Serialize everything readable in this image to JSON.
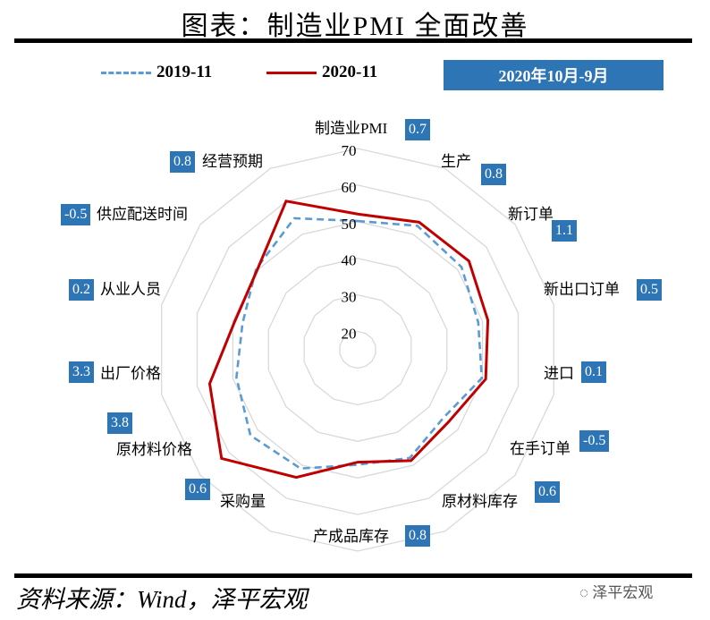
{
  "title": "图表：制造业PMI 全面改善",
  "badge": "2020年10月-9月",
  "source": "资料来源：Wind，泽平宏观",
  "logo": "泽平宏观",
  "colors": {
    "series_2019": "#5B9BD5",
    "series_2020": "#C00000",
    "delta_box": "#2E75B6",
    "grid": "#D9D9D9"
  },
  "chart_data": {
    "type": "radar",
    "title": "",
    "axes": [
      "制造业PMI",
      "生产",
      "新订单",
      "新出口订单",
      "进口",
      "在手订单",
      "原材料库存",
      "产成品库存",
      "采购量",
      "原材料价格",
      "出厂价格",
      "从业人员",
      "供应配送时间",
      "经营预期"
    ],
    "changes": [
      "0.7",
      "0.8",
      "1.1",
      "0.5",
      "0.1",
      "-0.5",
      "0.6",
      "0.8",
      "0.6",
      "3.8",
      "3.3",
      "0.2",
      "-0.5",
      "0.8"
    ],
    "range": [
      15,
      70
    ],
    "ticks": [
      "20",
      "30",
      "40",
      "50",
      "60",
      "70"
    ],
    "grid": true,
    "legend_position": "top",
    "series": [
      {
        "name": "2019-11",
        "style": "dashed",
        "values": [
          50.2,
          52.6,
          51.3,
          48.8,
          49.8,
          44.9,
          47.8,
          46.4,
          51.0,
          52.5,
          49.0,
          47.3,
          50.5,
          54.9
        ]
      },
      {
        "name": "2020-11",
        "style": "solid",
        "values": [
          52.1,
          53.7,
          53.9,
          51.5,
          50.9,
          46.7,
          48.6,
          45.7,
          53.7,
          62.6,
          56.5,
          49.5,
          50.1,
          60.1
        ]
      }
    ]
  }
}
